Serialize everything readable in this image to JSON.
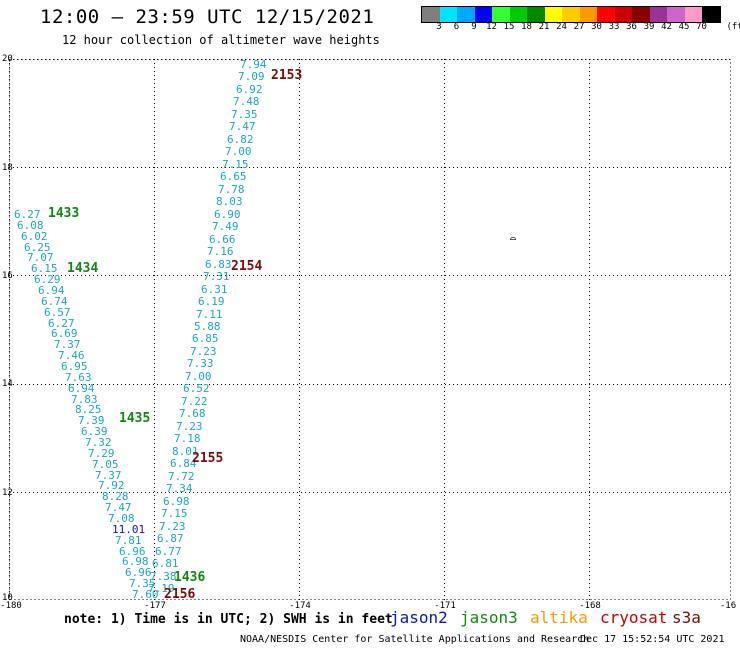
{
  "title": "12:00 – 23:59 UTC 12/15/2021",
  "subtitle": "12 hour collection of altimeter wave heights",
  "scale": {
    "unit": "(ft)",
    "bins": [
      {
        "label": "3",
        "color": "#7f7f7f"
      },
      {
        "label": "6",
        "color": "#00e5ff"
      },
      {
        "label": "9",
        "color": "#00a8ff"
      },
      {
        "label": "12",
        "color": "#0000ff"
      },
      {
        "label": "15",
        "color": "#33ff33"
      },
      {
        "label": "18",
        "color": "#00cc00"
      },
      {
        "label": "21",
        "color": "#008800"
      },
      {
        "label": "24",
        "color": "#ffff00"
      },
      {
        "label": "27",
        "color": "#ffcc00"
      },
      {
        "label": "30",
        "color": "#ff9900"
      },
      {
        "label": "33",
        "color": "#ff0000"
      },
      {
        "label": "36",
        "color": "#cc0000"
      },
      {
        "label": "39",
        "color": "#880000"
      },
      {
        "label": "42",
        "color": "#993399"
      },
      {
        "label": "45",
        "color": "#cc66cc"
      },
      {
        "label": "70",
        "color": "#ff99cc"
      },
      {
        "label": "",
        "color": "#000000"
      }
    ]
  },
  "axes": {
    "lon_ticks": [
      "-180",
      "-177",
      "-174",
      "-171",
      "-168",
      "-16"
    ],
    "lat_ticks": [
      "20",
      "18",
      "16",
      "14",
      "12",
      "10"
    ]
  },
  "passes": [
    {
      "label": "2153",
      "color": "red"
    },
    {
      "label": "1433",
      "color": "green"
    },
    {
      "label": "1434",
      "color": "green"
    },
    {
      "label": "2154",
      "color": "red"
    },
    {
      "label": "1435",
      "color": "green"
    },
    {
      "label": "2155",
      "color": "red"
    },
    {
      "label": "1436",
      "color": "green"
    },
    {
      "label": "2156",
      "color": "red"
    }
  ],
  "track_2153": [
    "7.94",
    "7.09",
    "6.92",
    "7.48",
    "7.35",
    "7.47",
    "6.82",
    "7.00",
    "7.15",
    "6.65",
    "7.78",
    "8.03",
    "6.90",
    "7.49",
    "6.66",
    "7.16",
    "6.83",
    "7.31",
    "6.31",
    "6.19",
    "7.11",
    "5.88",
    "6.85",
    "7.23",
    "7.33",
    "7.00",
    "6.52",
    "7.22",
    "7.68",
    "7.23",
    "7.18",
    "8.01",
    "6.84",
    "7.72",
    "7.34",
    "6.98",
    "7.15",
    "7.23",
    "6.87",
    "6.77",
    "6.81",
    "7.38",
    "7.19"
  ],
  "track_1433": [
    "6.27",
    "6.08",
    "6.02",
    "6.25",
    "7.07",
    "6.15",
    "6.29",
    "6.94",
    "6.74",
    "6.57",
    "6.27",
    "6.69",
    "7.37",
    "7.46",
    "6.95",
    "7.63",
    "6.94",
    "7.83",
    "8.25",
    "7.39",
    "6.39",
    "7.32",
    "7.29",
    "7.05",
    "7.37",
    "7.92",
    "8.28",
    "7.47",
    "7.08",
    "11.01",
    "7.81",
    "6.96",
    "6.98",
    "6.96",
    "7.35",
    "7.60"
  ],
  "marker": "⌓",
  "note": "note: 1) Time is in UTC; 2) SWH is in feet",
  "legend": [
    {
      "name": "jason2",
      "color": "#0a14c8"
    },
    {
      "name": "jason3",
      "color": "#0e8a0e"
    },
    {
      "name": "altika",
      "color": "#ff9900"
    },
    {
      "name": "cryosat",
      "color": "#cc0000"
    },
    {
      "name": "s3a",
      "color": "#7a0b0b"
    }
  ],
  "footer": "NOAA/NESDIS Center for Satellite Applications and Research",
  "footer_date": "Dec 17 15:52:54 UTC 2021"
}
